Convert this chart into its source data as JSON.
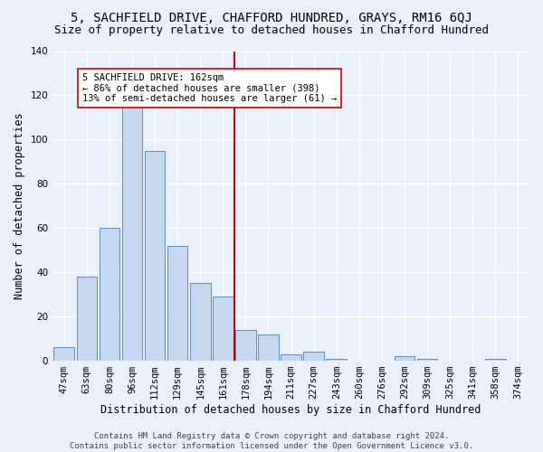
{
  "title": "5, SACHFIELD DRIVE, CHAFFORD HUNDRED, GRAYS, RM16 6QJ",
  "subtitle": "Size of property relative to detached houses in Chafford Hundred",
  "xlabel": "Distribution of detached houses by size in Chafford Hundred",
  "ylabel": "Number of detached properties",
  "categories": [
    "47sqm",
    "63sqm",
    "80sqm",
    "96sqm",
    "112sqm",
    "129sqm",
    "145sqm",
    "161sqm",
    "178sqm",
    "194sqm",
    "211sqm",
    "227sqm",
    "243sqm",
    "260sqm",
    "276sqm",
    "292sqm",
    "309sqm",
    "325sqm",
    "341sqm",
    "358sqm",
    "374sqm"
  ],
  "values": [
    6,
    38,
    60,
    115,
    95,
    52,
    35,
    29,
    14,
    12,
    3,
    4,
    1,
    0,
    0,
    2,
    1,
    0,
    0,
    1,
    0
  ],
  "bar_color": "#c5d8f0",
  "bar_edge_color": "#5b8fc9",
  "ylim": [
    0,
    140
  ],
  "yticks": [
    0,
    20,
    40,
    60,
    80,
    100,
    120,
    140
  ],
  "vline_index": 7,
  "vline_color": "#cc0000",
  "annotation_text": "5 SACHFIELD DRIVE: 162sqm\n← 86% of detached houses are smaller (398)\n13% of semi-detached houses are larger (61) →",
  "annotation_box_color": "#ffffff",
  "annotation_box_edge": "#cc0000",
  "footer": "Contains HM Land Registry data © Crown copyright and database right 2024.\nContains public sector information licensed under the Open Government Licence v3.0.",
  "bg_color": "#eaf0fb",
  "grid_color": "#ffffff",
  "title_fontsize": 10,
  "subtitle_fontsize": 9,
  "xlabel_fontsize": 8.5,
  "ylabel_fontsize": 8.5,
  "tick_fontsize": 7.5,
  "annotation_fontsize": 7.5,
  "footer_fontsize": 6.5
}
